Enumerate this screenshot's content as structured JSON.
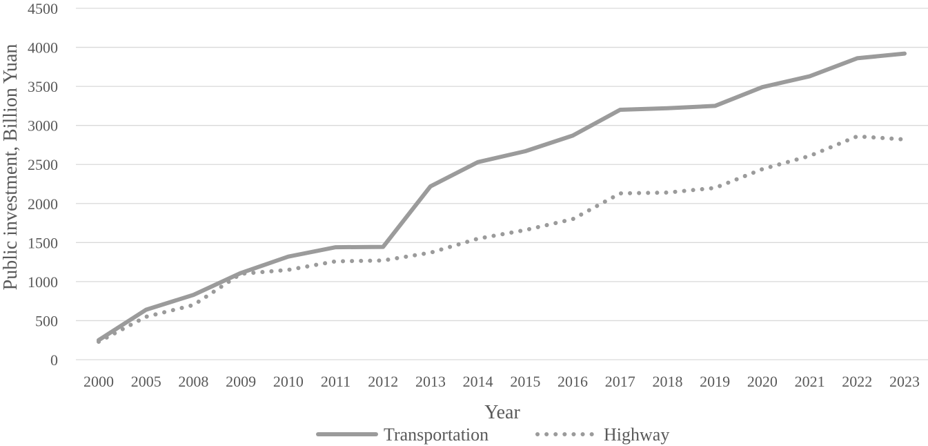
{
  "chart_data": {
    "type": "line",
    "title": "",
    "xlabel": "Year",
    "ylabel": "Public investment, Billion Yuan",
    "ylim": [
      0,
      4500
    ],
    "yticks": [
      0,
      500,
      1000,
      1500,
      2000,
      2500,
      3000,
      3500,
      4000,
      4500
    ],
    "categories": [
      "2000",
      "2005",
      "2008",
      "2009",
      "2010",
      "2011",
      "2012",
      "2013",
      "2014",
      "2015",
      "2016",
      "2017",
      "2018",
      "2019",
      "2020",
      "2021",
      "2022",
      "2023"
    ],
    "grid": true,
    "legend_position": "bottom",
    "series": [
      {
        "name": "Transportation",
        "style": "solid",
        "color": "#9b9b9b",
        "values": [
          250,
          640,
          830,
          1110,
          1320,
          1440,
          1445,
          2220,
          2530,
          2670,
          2870,
          3200,
          3220,
          3250,
          3490,
          3630,
          3860,
          3920
        ]
      },
      {
        "name": "Highway",
        "style": "dotted",
        "color": "#9b9b9b",
        "values": [
          230,
          550,
          700,
          1100,
          1150,
          1260,
          1270,
          1370,
          1550,
          1660,
          1800,
          2130,
          2140,
          2200,
          2440,
          2610,
          2860,
          2820
        ]
      }
    ]
  }
}
